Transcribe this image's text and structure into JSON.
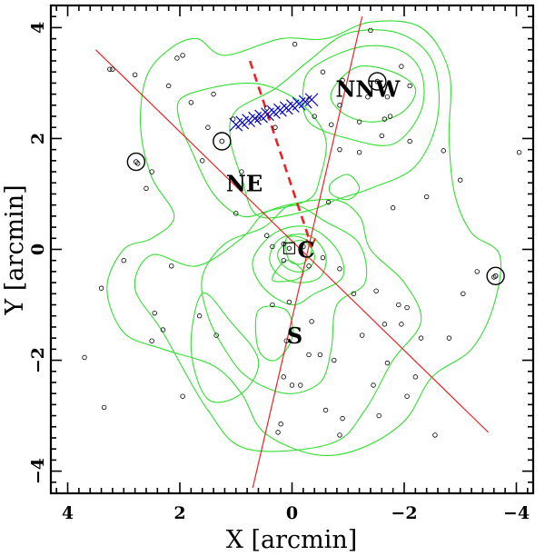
{
  "chart_data": {
    "type": "scatter",
    "xlabel": "X [arcmin]",
    "ylabel": "Y [arcmin]",
    "xlim": [
      4.3,
      -4.3
    ],
    "ylim": [
      -4.4,
      4.4
    ],
    "x_ticks": [
      4,
      2,
      0,
      -2,
      -4
    ],
    "y_ticks": [
      -4,
      -2,
      0,
      2,
      4
    ],
    "x_tick_labels": [
      "4",
      "2",
      "0",
      "−2",
      "−4"
    ],
    "y_tick_labels": [
      "−4",
      "−2",
      "0",
      "2",
      "4"
    ],
    "region_labels": [
      {
        "text": "NNW",
        "x": -1.35,
        "y": 2.75
      },
      {
        "text": "NE",
        "x": 0.85,
        "y": 1.05
      },
      {
        "text": "C",
        "x": -0.25,
        "y": -0.15
      },
      {
        "text": "S",
        "x": -0.05,
        "y": -1.7
      }
    ],
    "galaxies": [
      [
        -0.05,
        3.7
      ],
      [
        1.95,
        3.5
      ],
      [
        2.05,
        3.45
      ],
      [
        -1.4,
        3.95
      ],
      [
        -1.95,
        3.3
      ],
      [
        3.2,
        3.25
      ],
      [
        2.8,
        3.15
      ],
      [
        -0.55,
        3.2
      ],
      [
        -0.9,
        3.05
      ],
      [
        2.2,
        2.95
      ],
      [
        -2.1,
        2.95
      ],
      [
        1.4,
        2.8
      ],
      [
        -1.35,
        2.75
      ],
      [
        -1.7,
        2.75
      ],
      [
        -0.3,
        2.7
      ],
      [
        -0.85,
        2.6
      ],
      [
        -1.75,
        2.4
      ],
      [
        1.8,
        2.65
      ],
      [
        0.45,
        2.55
      ],
      [
        1.05,
        2.35
      ],
      [
        -0.4,
        2.4
      ],
      [
        -1.65,
        2.35
      ],
      [
        -0.7,
        2.25
      ],
      [
        -1.2,
        2.3
      ],
      [
        0.6,
        2.35
      ],
      [
        1.5,
        2.2
      ],
      [
        0.3,
        2.2
      ],
      [
        -1.6,
        2.05
      ],
      [
        -1.2,
        1.75
      ],
      [
        -0.85,
        1.8
      ],
      [
        -2.1,
        1.95
      ],
      [
        -2.7,
        1.78
      ],
      [
        -4.05,
        1.75
      ],
      [
        1.6,
        1.6
      ],
      [
        2.5,
        1.4
      ],
      [
        2.75,
        1.55
      ],
      [
        -3.0,
        1.25
      ],
      [
        0.9,
        1.4
      ],
      [
        2.6,
        1.1
      ],
      [
        -2.4,
        0.95
      ],
      [
        -0.65,
        0.85
      ],
      [
        -1.8,
        0.75
      ],
      [
        1.0,
        0.65
      ],
      [
        0.45,
        0.25
      ],
      [
        0.35,
        0.05
      ],
      [
        0.15,
        0.1
      ],
      [
        -0.2,
        0.05
      ],
      [
        0.15,
        -0.2
      ],
      [
        -0.3,
        -0.3
      ],
      [
        -0.55,
        -0.15
      ],
      [
        -0.85,
        -0.35
      ],
      [
        3.0,
        -0.2
      ],
      [
        2.15,
        -0.3
      ],
      [
        -3.3,
        -0.4
      ],
      [
        -3.6,
        -0.5
      ],
      [
        3.4,
        -0.7
      ],
      [
        -1.1,
        -0.8
      ],
      [
        -1.5,
        -0.75
      ],
      [
        -3.05,
        -0.8
      ],
      [
        0.05,
        -0.95
      ],
      [
        -1.9,
        -1.0
      ],
      [
        -1.65,
        -1.35
      ],
      [
        0.35,
        -1.0
      ],
      [
        -0.35,
        -1.3
      ],
      [
        1.65,
        -1.2
      ],
      [
        2.45,
        -1.15
      ],
      [
        -2.05,
        -1.05
      ],
      [
        -1.95,
        -1.35
      ],
      [
        2.3,
        -1.45
      ],
      [
        2.5,
        -1.65
      ],
      [
        1.35,
        -1.55
      ],
      [
        0.1,
        -1.65
      ],
      [
        -0.3,
        -1.9
      ],
      [
        -0.5,
        -1.9
      ],
      [
        -1.25,
        -1.55
      ],
      [
        -2.3,
        -1.6
      ],
      [
        -2.8,
        -1.6
      ],
      [
        -0.75,
        -2.0
      ],
      [
        3.7,
        -1.95
      ],
      [
        -1.7,
        -2.05
      ],
      [
        -2.2,
        -2.3
      ],
      [
        0.15,
        -2.3
      ],
      [
        -0.15,
        -2.45
      ],
      [
        -1.45,
        -2.45
      ],
      [
        0.0,
        -2.45
      ],
      [
        1.95,
        -2.65
      ],
      [
        -2.05,
        -2.65
      ],
      [
        -0.6,
        -2.9
      ],
      [
        3.35,
        -2.85
      ],
      [
        -0.9,
        -3.05
      ],
      [
        -1.55,
        -3.0
      ],
      [
        0.2,
        -3.15
      ],
      [
        0.25,
        -3.3
      ],
      [
        -0.85,
        -3.35
      ],
      [
        -2.55,
        -3.35
      ],
      [
        3.25,
        3.25
      ]
    ],
    "bright_galaxies": [
      [
        -1.52,
        3.03
      ],
      [
        1.25,
        1.95
      ],
      [
        2.78,
        1.58
      ],
      [
        -3.63,
        -0.48
      ]
    ],
    "bcg_box": [
      0.05,
      0.02
    ],
    "contours": [
      [
        [
          -0.8,
          3.0
        ],
        [
          -1.2,
          3.3
        ],
        [
          -1.8,
          3.2
        ],
        [
          -2.2,
          2.9
        ],
        [
          -2.0,
          2.5
        ],
        [
          -1.5,
          2.3
        ],
        [
          -1.0,
          2.4
        ],
        [
          -0.7,
          2.7
        ],
        [
          -0.8,
          3.0
        ]
      ],
      [
        [
          -0.4,
          3.3
        ],
        [
          -1.2,
          3.65
        ],
        [
          -1.9,
          3.6
        ],
        [
          -2.3,
          3.2
        ],
        [
          -2.3,
          2.5
        ],
        [
          -1.8,
          1.9
        ],
        [
          -1.0,
          2.0
        ],
        [
          -0.3,
          2.3
        ],
        [
          -0.2,
          2.9
        ],
        [
          -0.4,
          3.3
        ]
      ],
      [
        [
          1.0,
          2.5
        ],
        [
          0.3,
          2.9
        ],
        [
          -0.3,
          3.4
        ],
        [
          -1.0,
          3.9
        ],
        [
          -1.9,
          3.9
        ],
        [
          -2.5,
          3.4
        ],
        [
          -2.6,
          2.4
        ],
        [
          -2.2,
          1.5
        ],
        [
          -1.4,
          1.1
        ],
        [
          -0.8,
          0.9
        ],
        [
          -0.3,
          0.7
        ],
        [
          0.6,
          0.6
        ],
        [
          0.9,
          1.3
        ],
        [
          1.1,
          2.0
        ],
        [
          1.0,
          2.5
        ]
      ],
      [
        [
          1.2,
          3.5
        ],
        [
          0.2,
          3.8
        ],
        [
          -0.6,
          3.8
        ],
        [
          -1.4,
          4.1
        ],
        [
          -2.3,
          4.0
        ],
        [
          -2.8,
          3.2
        ],
        [
          -2.8,
          2.0
        ],
        [
          -2.9,
          1.0
        ],
        [
          -3.2,
          0.3
        ],
        [
          -3.7,
          -0.1
        ],
        [
          -3.6,
          -1.0
        ],
        [
          -3.2,
          -1.8
        ],
        [
          -2.5,
          -2.3
        ],
        [
          -2.0,
          -3.1
        ],
        [
          -1.2,
          -3.6
        ],
        [
          -0.4,
          -3.7
        ],
        [
          0.5,
          -3.3
        ],
        [
          0.9,
          -2.6
        ],
        [
          1.4,
          -2.1
        ],
        [
          2.3,
          -1.8
        ],
        [
          3.0,
          -1.5
        ],
        [
          3.3,
          -0.7
        ],
        [
          3.0,
          0.0
        ],
        [
          2.5,
          0.2
        ],
        [
          2.1,
          0.6
        ],
        [
          2.5,
          1.3
        ],
        [
          2.7,
          2.2
        ],
        [
          2.6,
          3.1
        ],
        [
          2.2,
          3.6
        ],
        [
          1.7,
          3.8
        ],
        [
          1.2,
          3.5
        ]
      ],
      [
        [
          2.0,
          2.7
        ],
        [
          1.5,
          2.9
        ],
        [
          0.8,
          3.0
        ],
        [
          0.3,
          2.9
        ],
        [
          -0.2,
          2.6
        ],
        [
          -0.6,
          2.0
        ],
        [
          -0.5,
          1.3
        ],
        [
          -0.3,
          0.9
        ],
        [
          0.4,
          0.7
        ],
        [
          0.9,
          0.6
        ],
        [
          1.4,
          1.0
        ],
        [
          1.8,
          1.8
        ],
        [
          2.0,
          2.3
        ],
        [
          2.0,
          2.7
        ]
      ],
      [
        [
          -0.7,
          1.2
        ],
        [
          -1.0,
          1.35
        ],
        [
          -1.2,
          1.1
        ],
        [
          -1.0,
          0.9
        ],
        [
          -0.7,
          1.0
        ],
        [
          -0.7,
          1.2
        ]
      ],
      [
        [
          0.5,
          0.4
        ],
        [
          0.0,
          0.8
        ],
        [
          -0.6,
          0.5
        ],
        [
          -1.2,
          0.1
        ],
        [
          -1.3,
          -0.6
        ],
        [
          -0.8,
          -1.0
        ],
        [
          -0.7,
          -1.8
        ],
        [
          -0.5,
          -2.4
        ],
        [
          0.1,
          -2.6
        ],
        [
          0.8,
          -2.3
        ],
        [
          1.2,
          -1.8
        ],
        [
          1.5,
          -1.2
        ],
        [
          1.6,
          -0.5
        ],
        [
          1.2,
          0.1
        ],
        [
          0.5,
          0.4
        ]
      ],
      [
        [
          0.3,
          0.3
        ],
        [
          -0.3,
          0.4
        ],
        [
          -0.8,
          0.0
        ],
        [
          -0.9,
          -0.5
        ],
        [
          -0.4,
          -0.8
        ],
        [
          0.0,
          -1.0
        ],
        [
          0.5,
          -0.7
        ],
        [
          0.7,
          -0.2
        ],
        [
          0.3,
          0.3
        ]
      ],
      [
        [
          0.2,
          0.2
        ],
        [
          -0.3,
          0.25
        ],
        [
          -0.6,
          -0.1
        ],
        [
          -0.5,
          -0.5
        ],
        [
          -0.1,
          -0.6
        ],
        [
          0.25,
          -0.45
        ],
        [
          0.4,
          -0.15
        ],
        [
          0.2,
          0.2
        ]
      ],
      [
        [
          0.1,
          0.1
        ],
        [
          -0.2,
          0.15
        ],
        [
          -0.4,
          -0.1
        ],
        [
          -0.3,
          -0.35
        ],
        [
          -0.05,
          -0.4
        ],
        [
          0.2,
          -0.25
        ],
        [
          0.25,
          -0.05
        ],
        [
          0.1,
          0.1
        ]
      ],
      [
        [
          0.1,
          0.2
        ],
        [
          -0.2,
          0.2
        ],
        [
          -0.35,
          0.0
        ],
        [
          -0.2,
          -0.25
        ],
        [
          0.05,
          -0.2
        ],
        [
          0.1,
          0.2
        ]
      ],
      [
        [
          0.35,
          -0.55
        ],
        [
          -0.05,
          -0.55
        ],
        [
          -0.2,
          -0.4
        ],
        [
          0.1,
          -0.2
        ],
        [
          0.35,
          -0.55
        ]
      ],
      [
        [
          0.6,
          -1.1
        ],
        [
          0.6,
          -1.8
        ],
        [
          0.3,
          -2.0
        ],
        [
          0.0,
          -1.6
        ],
        [
          0.1,
          -1.1
        ],
        [
          0.6,
          -1.1
        ]
      ],
      [
        [
          1.6,
          -0.8
        ],
        [
          1.1,
          -1.3
        ],
        [
          0.6,
          -2.0
        ],
        [
          0.9,
          -2.6
        ],
        [
          1.5,
          -2.7
        ],
        [
          1.8,
          -1.8
        ],
        [
          1.6,
          -0.8
        ]
      ],
      [
        [
          2.8,
          -0.7
        ],
        [
          2.3,
          -1.5
        ],
        [
          1.5,
          -2.9
        ],
        [
          0.8,
          -3.6
        ],
        [
          -0.7,
          -3.5
        ],
        [
          -1.3,
          -2.9
        ],
        [
          -1.8,
          -2.0
        ],
        [
          -2.3,
          -1.3
        ],
        [
          -2.0,
          -0.6
        ],
        [
          -1.4,
          0.0
        ],
        [
          -1.2,
          0.6
        ],
        [
          -0.7,
          0.9
        ],
        [
          0.4,
          0.7
        ],
        [
          0.9,
          0.2
        ],
        [
          1.7,
          -0.3
        ],
        [
          2.5,
          -0.1
        ],
        [
          2.8,
          -0.7
        ]
      ]
    ],
    "lines": {
      "red_long_1": {
        "from": [
          3.5,
          3.6
        ],
        "to": [
          -3.5,
          -3.3
        ]
      },
      "red_long_2": {
        "from": [
          -1.25,
          4.2
        ],
        "to": [
          0.7,
          -4.3
        ]
      },
      "red_dashed": {
        "from": [
          0.75,
          3.4
        ],
        "to": [
          -0.35,
          0.05
        ]
      },
      "blue_crosses_track": {
        "from": [
          1.0,
          2.25
        ],
        "to": [
          -0.35,
          2.7
        ],
        "count": 13
      }
    },
    "colors": {
      "contour": "#33dd33",
      "red_line": "#ee2222",
      "crosses": "#0000cc",
      "points": "#000000",
      "axes": "#000000"
    }
  }
}
